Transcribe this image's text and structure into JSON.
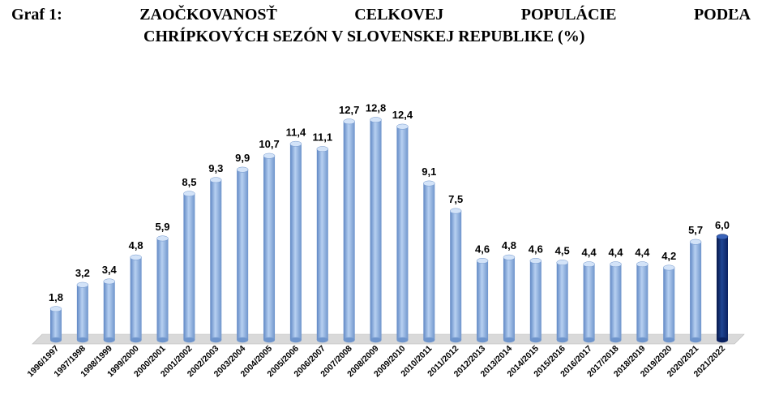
{
  "heading": {
    "label": "Graf 1:",
    "title_words": [
      "ZAOČKOVANOSŤ",
      "CELKOVEJ",
      "POPULÁCIE",
      "PODĽA"
    ],
    "title_line2": "CHRÍPKOVÝCH SEZÓN V SLOVENSKEJ REPUBLIKE (%)"
  },
  "chart_data": {
    "type": "bar",
    "title": "ZAOČKOVANOSŤ CELKOVEJ POPULÁCIE PODĽA CHRÍPKOVÝCH SEZÓN V SLOVENSKEJ REPUBLIKE (%)",
    "categories": [
      "1996/1997",
      "1997/1998",
      "1998/1999",
      "1999/2000",
      "2000/2001",
      "2001/2002",
      "2002/2003",
      "2003/2004",
      "2004/2005",
      "2005/2006",
      "2006/2007",
      "2007/2008",
      "2008/2009",
      "2009/2010",
      "2010/2011",
      "2011/2012",
      "2012/2013",
      "2013/2014",
      "2014/2015",
      "2015/2016",
      "2016/2017",
      "2017/2018",
      "2018/2019",
      "2019/2020",
      "2020/2021",
      "2021/2022"
    ],
    "values": [
      1.8,
      3.2,
      3.4,
      4.8,
      5.9,
      8.5,
      9.3,
      9.9,
      10.7,
      11.4,
      11.1,
      12.7,
      12.8,
      12.4,
      9.1,
      7.5,
      4.6,
      4.8,
      4.6,
      4.5,
      4.4,
      4.4,
      4.4,
      4.2,
      5.7,
      6.0
    ],
    "value_labels": [
      "1,8",
      "3,2",
      "3,4",
      "4,8",
      "5,9",
      "8,5",
      "9,3",
      "9,9",
      "10,7",
      "11,4",
      "11,1",
      "12,7",
      "12,8",
      "12,4",
      "9,1",
      "7,5",
      "4,6",
      "4,8",
      "4,6",
      "4,5",
      "4,4",
      "4,4",
      "4,4",
      "4,2",
      "5,7",
      "6,0"
    ],
    "ylim": [
      0,
      13.5
    ],
    "grid": false,
    "legend": "none",
    "colors": {
      "bar": "#8fb4e3",
      "bar_highlight": "#0d2a6b",
      "floor": "#d9d9d9"
    },
    "highlight_index": 25
  }
}
